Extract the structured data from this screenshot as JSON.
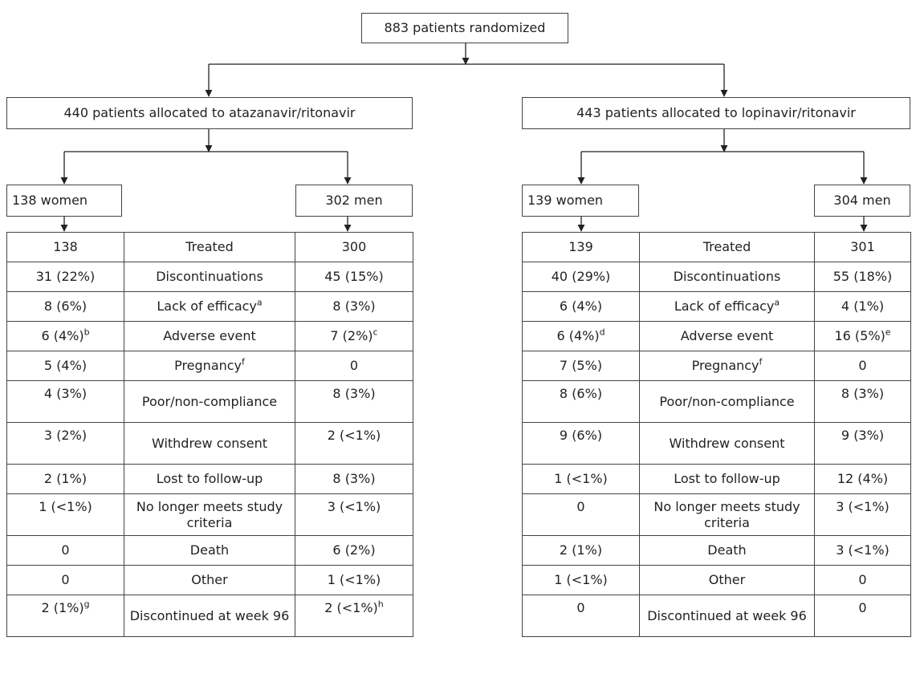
{
  "root": {
    "label": "883 patients randomized"
  },
  "arms": [
    {
      "label": "440 patients allocated to atazanavir/ritonavir",
      "women": "138 women",
      "men": "302 men",
      "rows": [
        {
          "women": "138",
          "women_sup": "",
          "category": "Treated",
          "category_sup": "",
          "men": "300",
          "men_sup": ""
        },
        {
          "women": "31 (22%)",
          "women_sup": "",
          "category": "Discontinuations",
          "category_sup": "",
          "men": "45 (15%)",
          "men_sup": ""
        },
        {
          "women": "8 (6%)",
          "women_sup": "",
          "category": "Lack of efficacy",
          "category_sup": "a",
          "men": "8 (3%)",
          "men_sup": ""
        },
        {
          "women": "6 (4%)",
          "women_sup": "b",
          "category": "Adverse event",
          "category_sup": "",
          "men": "7 (2%)",
          "men_sup": "c"
        },
        {
          "women": "5 (4%)",
          "women_sup": "",
          "category": "Pregnancy",
          "category_sup": "f",
          "men": "0",
          "men_sup": ""
        },
        {
          "women": "4 (3%)",
          "women_sup": "",
          "category": "Poor/non-compliance",
          "category_sup": "",
          "men": "8 (3%)",
          "men_sup": ""
        },
        {
          "women": "3 (2%)",
          "women_sup": "",
          "category": "Withdrew consent",
          "category_sup": "",
          "men": "2 (<1%)",
          "men_sup": ""
        },
        {
          "women": "2 (1%)",
          "women_sup": "",
          "category": "Lost to follow-up",
          "category_sup": "",
          "men": "8 (3%)",
          "men_sup": ""
        },
        {
          "women": "1 (<1%)",
          "women_sup": "",
          "category": "No longer meets study criteria",
          "category_sup": "",
          "men": "3 (<1%)",
          "men_sup": ""
        },
        {
          "women": "0",
          "women_sup": "",
          "category": "Death",
          "category_sup": "",
          "men": "6 (2%)",
          "men_sup": ""
        },
        {
          "women": "0",
          "women_sup": "",
          "category": "Other",
          "category_sup": "",
          "men": "1 (<1%)",
          "men_sup": ""
        },
        {
          "women": "2 (1%)",
          "women_sup": "g",
          "category": "Discontinued at week 96",
          "category_sup": "",
          "men": "2 (<1%)",
          "men_sup": "h"
        }
      ]
    },
    {
      "label": "443 patients allocated to lopinavir/ritonavir",
      "women": "139 women",
      "men": "304 men",
      "rows": [
        {
          "women": "139",
          "women_sup": "",
          "category": "Treated",
          "category_sup": "",
          "men": "301",
          "men_sup": ""
        },
        {
          "women": "40 (29%)",
          "women_sup": "",
          "category": "Discontinuations",
          "category_sup": "",
          "men": "55 (18%)",
          "men_sup": ""
        },
        {
          "women": "6 (4%)",
          "women_sup": "",
          "category": "Lack of efficacy",
          "category_sup": "a",
          "men": "4 (1%)",
          "men_sup": ""
        },
        {
          "women": "6 (4%)",
          "women_sup": "d",
          "category": "Adverse event",
          "category_sup": "",
          "men": "16 (5%)",
          "men_sup": "e"
        },
        {
          "women": "7 (5%)",
          "women_sup": "",
          "category": "Pregnancy",
          "category_sup": "f",
          "men": "0",
          "men_sup": ""
        },
        {
          "women": "8 (6%)",
          "women_sup": "",
          "category": "Poor/non-compliance",
          "category_sup": "",
          "men": "8 (3%)",
          "men_sup": ""
        },
        {
          "women": "9 (6%)",
          "women_sup": "",
          "category": "Withdrew consent",
          "category_sup": "",
          "men": "9 (3%)",
          "men_sup": ""
        },
        {
          "women": "1 (<1%)",
          "women_sup": "",
          "category": "Lost to follow-up",
          "category_sup": "",
          "men": "12 (4%)",
          "men_sup": ""
        },
        {
          "women": "0",
          "women_sup": "",
          "category": "No longer meets study criteria",
          "category_sup": "",
          "men": "3 (<1%)",
          "men_sup": ""
        },
        {
          "women": "2 (1%)",
          "women_sup": "",
          "category": "Death",
          "category_sup": "",
          "men": "3 (<1%)",
          "men_sup": ""
        },
        {
          "women": "1 (<1%)",
          "women_sup": "",
          "category": "Other",
          "category_sup": "",
          "men": "0",
          "men_sup": ""
        },
        {
          "women": "0",
          "women_sup": "",
          "category": "Discontinued at week 96",
          "category_sup": "",
          "men": "0",
          "men_sup": ""
        }
      ]
    }
  ]
}
